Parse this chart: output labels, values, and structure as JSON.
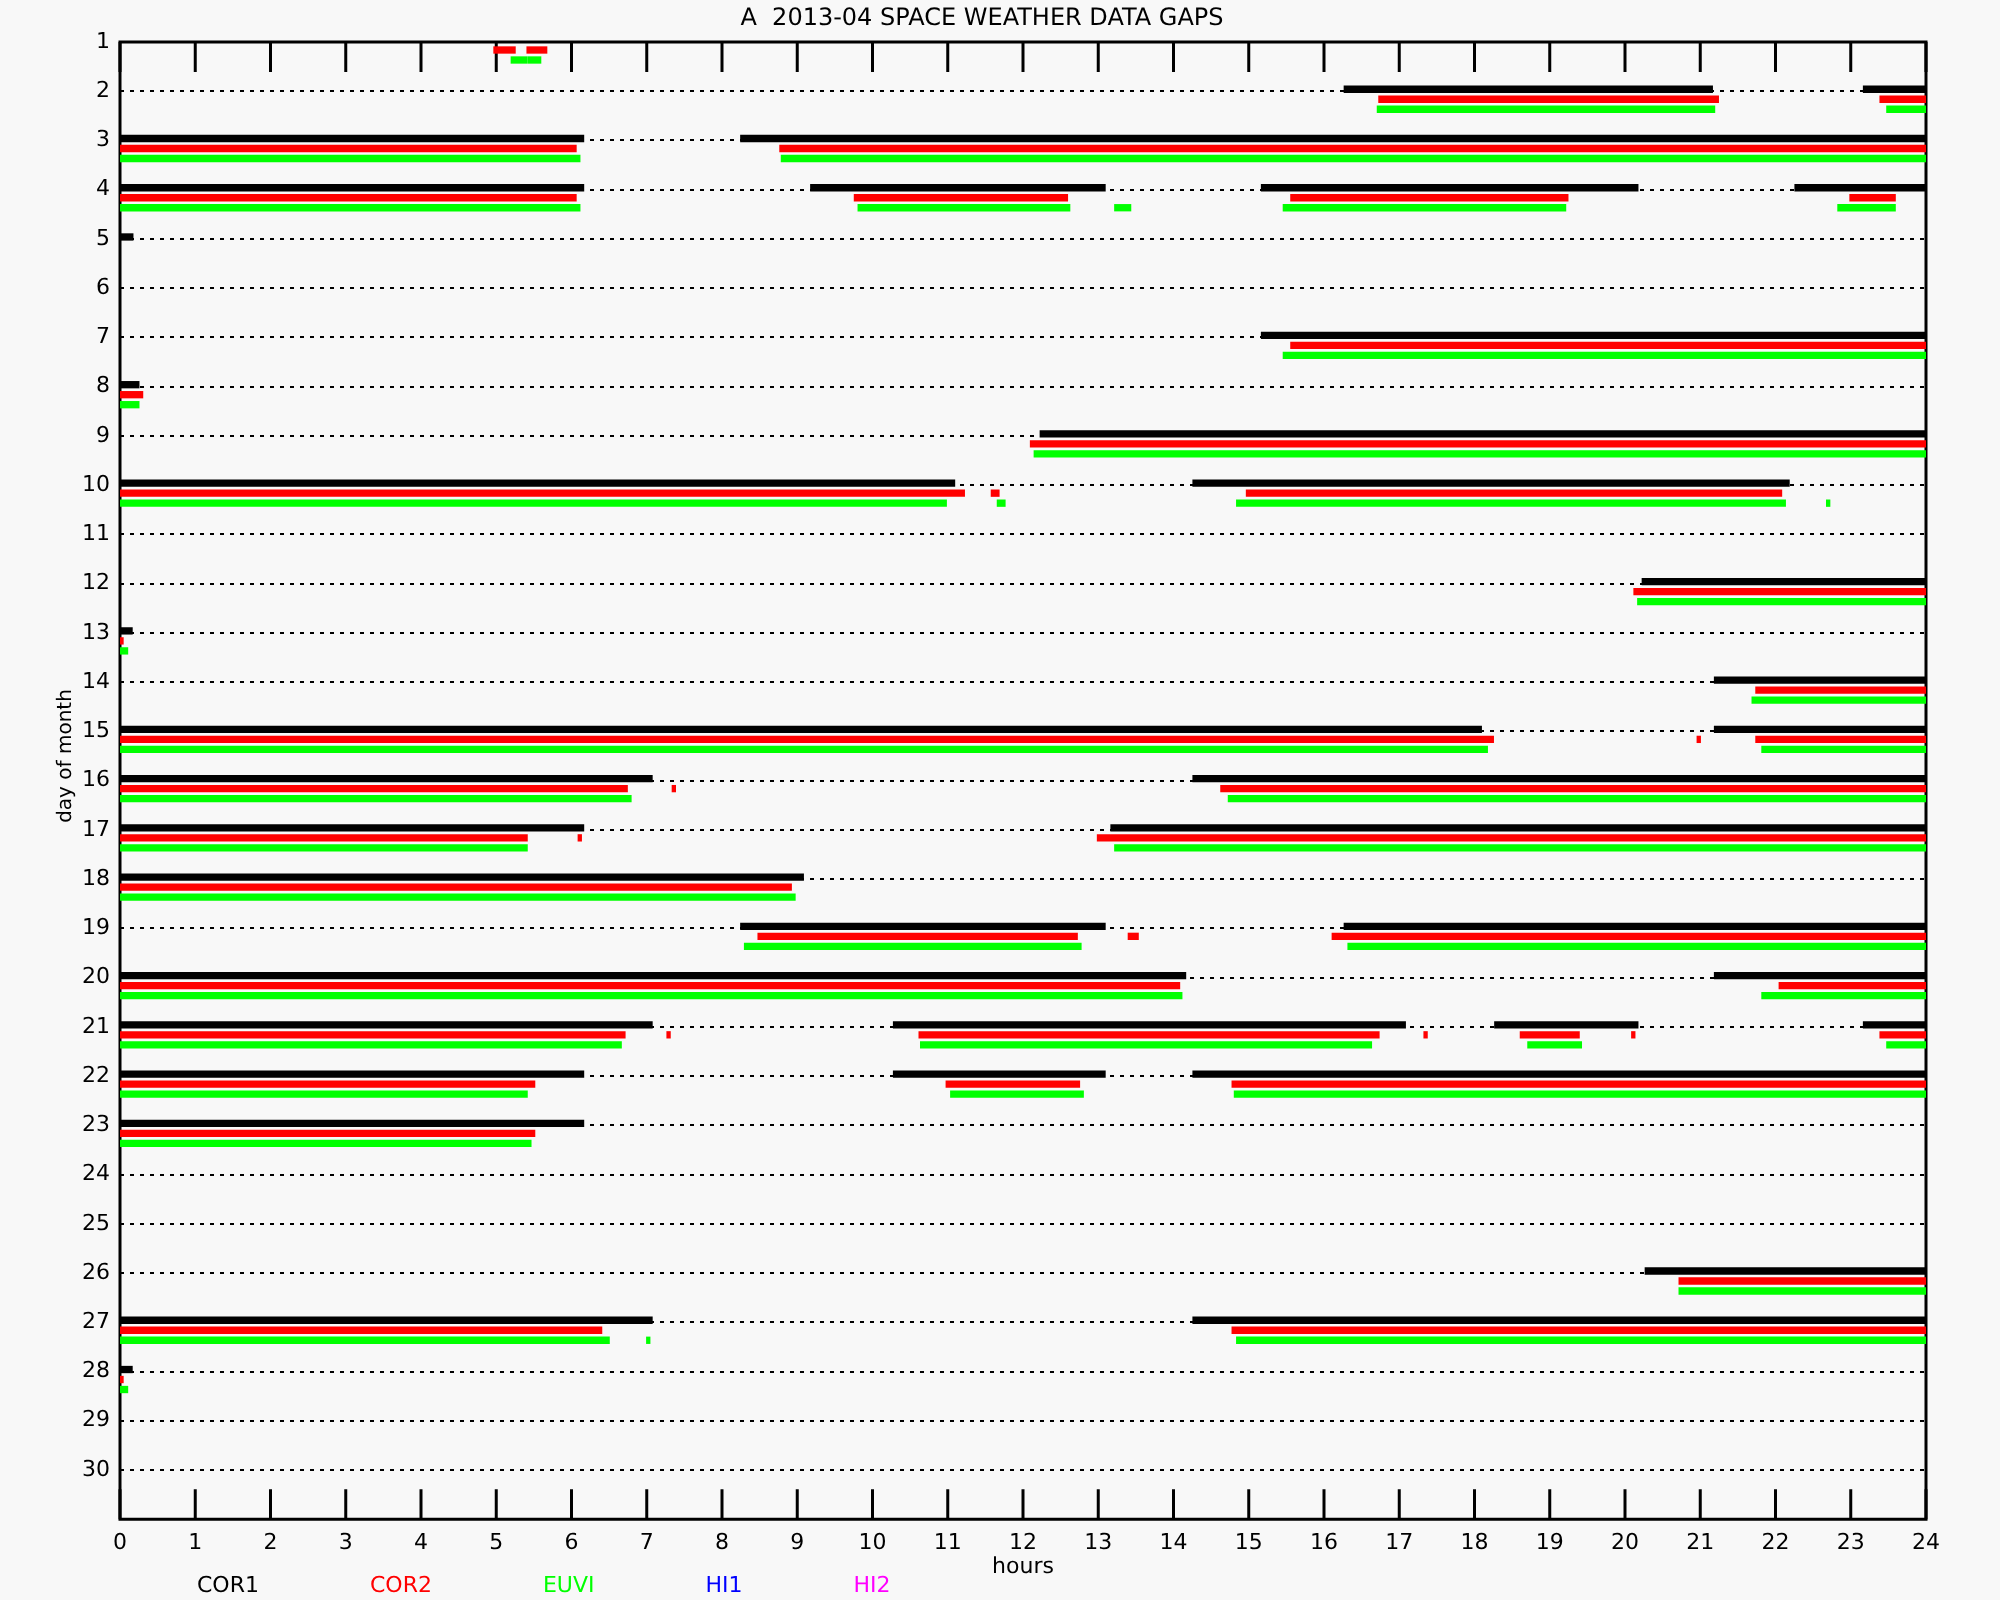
{
  "chart_data": {
    "type": "bar",
    "orientation": "horizontal",
    "title": "A  2013-04 SPACE WEATHER DATA GAPS",
    "xlabel": "hours",
    "ylabel": "day of month",
    "categories": [
      "1",
      "2",
      "3",
      "4",
      "5",
      "6",
      "7",
      "8",
      "9",
      "10",
      "11",
      "12",
      "13",
      "14",
      "15",
      "16",
      "17",
      "18",
      "19",
      "20",
      "21",
      "22",
      "23",
      "24",
      "25",
      "26",
      "27",
      "28",
      "29",
      "30"
    ],
    "xlim": [
      0,
      24
    ],
    "xticks": [
      0,
      1,
      2,
      3,
      4,
      5,
      6,
      7,
      8,
      9,
      10,
      11,
      12,
      13,
      14,
      15,
      16,
      17,
      18,
      19,
      20,
      21,
      22,
      23,
      24
    ],
    "grid": "y",
    "legend": "bottom",
    "series": [
      {
        "name": "COR1",
        "color": "#000000",
        "base": [
          null,
          16.27,
          0,
          0,
          0,
          null,
          15.17,
          0,
          12.23,
          0,
          null,
          20.23,
          0,
          21.19,
          0,
          0,
          0,
          0,
          8.25,
          0,
          0,
          0,
          0,
          null,
          null,
          20.27,
          0,
          0,
          null,
          null
        ],
        "values": [
          null,
          4.89,
          6.16,
          6.16,
          0.17,
          null,
          8.83,
          0.25,
          11.77,
          11.09,
          null,
          3.77,
          0.16,
          2.81,
          18.09,
          7.07,
          6.16,
          9.08,
          4.84,
          14.16,
          7.07,
          6.16,
          6.16,
          null,
          null,
          3.73,
          7.07,
          0.16,
          null,
          null
        ]
      },
      {
        "color": "#000000",
        "base": [
          null,
          23.17,
          8.25,
          9.18,
          null,
          null,
          null,
          null,
          null,
          14.26,
          null,
          null,
          null,
          null,
          21.19,
          14.26,
          13.17,
          null,
          16.27,
          21.19,
          10.28,
          10.28,
          null,
          null,
          null,
          null,
          14.26,
          null,
          null,
          null
        ],
        "values": [
          null,
          0.83,
          15.75,
          3.91,
          null,
          null,
          null,
          null,
          null,
          7.92,
          null,
          null,
          null,
          null,
          2.81,
          9.74,
          10.83,
          null,
          7.73,
          2.81,
          6.8,
          2.81,
          null,
          null,
          null,
          null,
          9.74,
          null,
          null,
          null
        ]
      },
      {
        "color": "#000000",
        "base": [
          null,
          null,
          null,
          15.17,
          null,
          null,
          null,
          null,
          null,
          null,
          null,
          null,
          null,
          null,
          null,
          null,
          null,
          null,
          null,
          null,
          18.27,
          14.26,
          null,
          null,
          null,
          null,
          null,
          null,
          null,
          null
        ],
        "values": [
          null,
          null,
          null,
          5,
          null,
          null,
          null,
          null,
          null,
          null,
          null,
          null,
          null,
          null,
          null,
          null,
          null,
          null,
          null,
          null,
          1.9,
          9.74,
          null,
          null,
          null,
          null,
          null,
          null,
          null,
          null
        ]
      },
      {
        "color": "#000000",
        "base": [
          null,
          null,
          null,
          22.26,
          null,
          null,
          null,
          null,
          null,
          null,
          null,
          null,
          null,
          null,
          null,
          null,
          null,
          null,
          null,
          null,
          23.17,
          null,
          null,
          null,
          null,
          null,
          null,
          null,
          null,
          null
        ],
        "values": [
          null,
          null,
          null,
          1.74,
          null,
          null,
          null,
          null,
          null,
          null,
          null,
          null,
          null,
          null,
          null,
          null,
          null,
          null,
          null,
          null,
          0.83,
          null,
          null,
          null,
          null,
          null,
          null,
          null,
          null,
          null
        ]
      },
      {
        "name": "COR2",
        "color": "#ff0000",
        "base": [
          4.97,
          16.73,
          0,
          0,
          null,
          null,
          15.56,
          0,
          12.1,
          0,
          null,
          20.12,
          0,
          21.74,
          0,
          0,
          0,
          0,
          8.48,
          0,
          0,
          0,
          0,
          null,
          null,
          20.72,
          0,
          0,
          null,
          null
        ],
        "values": [
          0.28,
          4.51,
          6.06,
          6.06,
          null,
          null,
          8.44,
          0.3,
          11.9,
          11.22,
          null,
          3.88,
          0.04,
          2.26,
          18.25,
          6.74,
          5.41,
          8.92,
          4.24,
          14.08,
          6.71,
          5.51,
          5.51,
          null,
          null,
          3.28,
          6.4,
          0.04,
          null,
          null
        ]
      },
      {
        "color": "#ff0000",
        "base": [
          5.41,
          23.39,
          8.77,
          9.76,
          null,
          null,
          null,
          null,
          null,
          11.58,
          null,
          null,
          null,
          null,
          20.96,
          7.34,
          6.09,
          null,
          13.4,
          22.05,
          7.27,
          10.98,
          null,
          null,
          null,
          null,
          14.78,
          null,
          null,
          null
        ],
        "values": [
          0.26,
          0.61,
          15.23,
          2.83,
          null,
          null,
          null,
          null,
          null,
          0.1,
          null,
          null,
          null,
          null,
          0.04,
          0.04,
          0.04,
          null,
          0.13,
          1.95,
          0.04,
          1.77,
          null,
          null,
          null,
          null,
          9.22,
          null,
          null,
          null
        ]
      },
      {
        "color": "#ff0000",
        "base": [
          null,
          null,
          null,
          15.56,
          null,
          null,
          null,
          null,
          null,
          14.97,
          null,
          null,
          null,
          null,
          21.74,
          14.63,
          12.99,
          null,
          16.11,
          null,
          10.62,
          14.78,
          null,
          null,
          null,
          null,
          null,
          null,
          null,
          null
        ],
        "values": [
          null,
          null,
          null,
          3.68,
          null,
          null,
          null,
          null,
          null,
          7.11,
          null,
          null,
          null,
          null,
          2.26,
          9.37,
          11.01,
          null,
          7.89,
          null,
          6.11,
          9.22,
          null,
          null,
          null,
          null,
          null,
          null,
          null,
          null
        ]
      },
      {
        "color": "#ff0000",
        "base": [
          null,
          null,
          null,
          22.99,
          null,
          null,
          null,
          null,
          null,
          null,
          null,
          null,
          null,
          null,
          null,
          null,
          null,
          null,
          null,
          null,
          17.33,
          null,
          null,
          null,
          null,
          null,
          null,
          null,
          null,
          null
        ],
        "values": [
          null,
          null,
          null,
          0.6,
          null,
          null,
          null,
          null,
          null,
          null,
          null,
          null,
          null,
          null,
          null,
          null,
          null,
          null,
          null,
          null,
          0.04,
          null,
          null,
          null,
          null,
          null,
          null,
          null,
          null,
          null
        ]
      },
      {
        "color": "#ff0000",
        "base": [
          null,
          null,
          null,
          null,
          null,
          null,
          null,
          null,
          null,
          null,
          null,
          null,
          null,
          null,
          null,
          null,
          null,
          null,
          null,
          null,
          18.61,
          null,
          null,
          null,
          null,
          null,
          null,
          null,
          null,
          null
        ],
        "values": [
          null,
          null,
          null,
          null,
          null,
          null,
          null,
          null,
          null,
          null,
          null,
          null,
          null,
          null,
          null,
          null,
          null,
          null,
          null,
          null,
          0.78,
          null,
          null,
          null,
          null,
          null,
          null,
          null,
          null,
          null
        ]
      },
      {
        "color": "#ff0000",
        "base": [
          null,
          null,
          null,
          null,
          null,
          null,
          null,
          null,
          null,
          null,
          null,
          null,
          null,
          null,
          null,
          null,
          null,
          null,
          null,
          null,
          20.09,
          null,
          null,
          null,
          null,
          null,
          null,
          null,
          null,
          null
        ],
        "values": [
          null,
          null,
          null,
          null,
          null,
          null,
          null,
          null,
          null,
          null,
          null,
          null,
          null,
          null,
          null,
          null,
          null,
          null,
          null,
          null,
          0.04,
          null,
          null,
          null,
          null,
          null,
          null,
          null,
          null,
          null
        ]
      },
      {
        "color": "#ff0000",
        "base": [
          null,
          null,
          null,
          null,
          null,
          null,
          null,
          null,
          null,
          null,
          null,
          null,
          null,
          null,
          null,
          null,
          null,
          null,
          null,
          null,
          23.39,
          null,
          null,
          null,
          null,
          null,
          null,
          null,
          null,
          null
        ],
        "values": [
          null,
          null,
          null,
          null,
          null,
          null,
          null,
          null,
          null,
          null,
          null,
          null,
          null,
          null,
          null,
          null,
          null,
          null,
          null,
          null,
          0.61,
          null,
          null,
          null,
          null,
          null,
          null,
          null,
          null,
          null
        ]
      },
      {
        "name": "EUVI",
        "color": "#00ff00",
        "base": [
          5.2,
          16.71,
          0,
          0,
          null,
          null,
          15.46,
          0,
          12.15,
          0,
          null,
          20.17,
          0,
          21.69,
          0,
          0,
          0,
          0,
          8.3,
          0,
          0,
          0,
          0,
          null,
          null,
          20.72,
          0,
          0,
          null,
          null
        ],
        "values": [
          0.21,
          4.48,
          6.11,
          6.11,
          null,
          null,
          8.54,
          0.25,
          11.85,
          10.98,
          null,
          3.83,
          0.1,
          2.31,
          18.17,
          6.79,
          5.41,
          8.97,
          4.47,
          14.11,
          6.66,
          5.41,
          5.46,
          null,
          null,
          3.28,
          6.5,
          0.1,
          null,
          null
        ]
      },
      {
        "color": "#00ff00",
        "base": [
          5.43,
          23.48,
          8.79,
          9.81,
          null,
          null,
          null,
          null,
          null,
          11.66,
          null,
          null,
          null,
          null,
          21.82,
          14.73,
          13.22,
          null,
          16.32,
          21.82,
          10.64,
          11.04,
          null,
          null,
          null,
          null,
          7,
          null,
          null,
          null
        ],
        "values": [
          0.16,
          0.52,
          15.21,
          2.81,
          null,
          null,
          null,
          null,
          null,
          0.1,
          null,
          null,
          null,
          null,
          2.18,
          9.27,
          10.78,
          null,
          7.68,
          2.18,
          5.99,
          1.76,
          null,
          null,
          null,
          null,
          0.04,
          null,
          null,
          null
        ]
      },
      {
        "color": "#00ff00",
        "base": [
          null,
          null,
          null,
          13.22,
          null,
          null,
          null,
          null,
          null,
          14.84,
          null,
          null,
          null,
          null,
          null,
          null,
          null,
          null,
          null,
          null,
          18.71,
          14.81,
          null,
          null,
          null,
          null,
          14.84,
          null,
          null,
          null
        ],
        "values": [
          null,
          null,
          null,
          0.21,
          null,
          null,
          null,
          null,
          null,
          7.29,
          null,
          null,
          null,
          null,
          null,
          null,
          null,
          null,
          null,
          null,
          0.71,
          9.19,
          null,
          null,
          null,
          null,
          9.16,
          null,
          null,
          null
        ]
      },
      {
        "color": "#00ff00",
        "base": [
          null,
          null,
          null,
          15.46,
          null,
          null,
          null,
          null,
          null,
          22.68,
          null,
          null,
          null,
          null,
          null,
          null,
          null,
          null,
          null,
          null,
          23.48,
          null,
          null,
          null,
          null,
          null,
          null,
          null,
          null,
          null
        ],
        "values": [
          null,
          null,
          null,
          3.75,
          null,
          null,
          null,
          null,
          null,
          0.04,
          null,
          null,
          null,
          null,
          null,
          null,
          null,
          null,
          null,
          null,
          0.52,
          null,
          null,
          null,
          null,
          null,
          null,
          null,
          null,
          null
        ]
      },
      {
        "color": "#00ff00",
        "base": [
          null,
          null,
          null,
          22.83,
          null,
          null,
          null,
          null,
          null,
          null,
          null,
          null,
          null,
          null,
          null,
          null,
          null,
          null,
          null,
          null,
          null,
          null,
          null,
          null,
          null,
          null,
          null,
          null,
          null,
          null
        ],
        "values": [
          null,
          null,
          null,
          0.76,
          null,
          null,
          null,
          null,
          null,
          null,
          null,
          null,
          null,
          null,
          null,
          null,
          null,
          null,
          null,
          null,
          null,
          null,
          null,
          null,
          null,
          null,
          null,
          null,
          null,
          null
        ]
      },
      {
        "name": "HI1",
        "color": "#0000ff",
        "values": [
          null,
          null,
          null,
          null,
          null,
          null,
          null,
          null,
          null,
          null,
          null,
          null,
          null,
          null,
          null,
          null,
          null,
          null,
          null,
          null,
          null,
          null,
          null,
          null,
          null,
          null,
          null,
          null,
          null,
          null
        ]
      },
      {
        "name": "HI2",
        "color": "#ff00ff",
        "values": [
          null,
          null,
          null,
          null,
          null,
          null,
          null,
          null,
          null,
          null,
          null,
          null,
          null,
          null,
          null,
          null,
          null,
          null,
          null,
          null,
          null,
          null,
          null,
          null,
          null,
          null,
          null,
          null,
          null,
          null
        ]
      }
    ]
  }
}
